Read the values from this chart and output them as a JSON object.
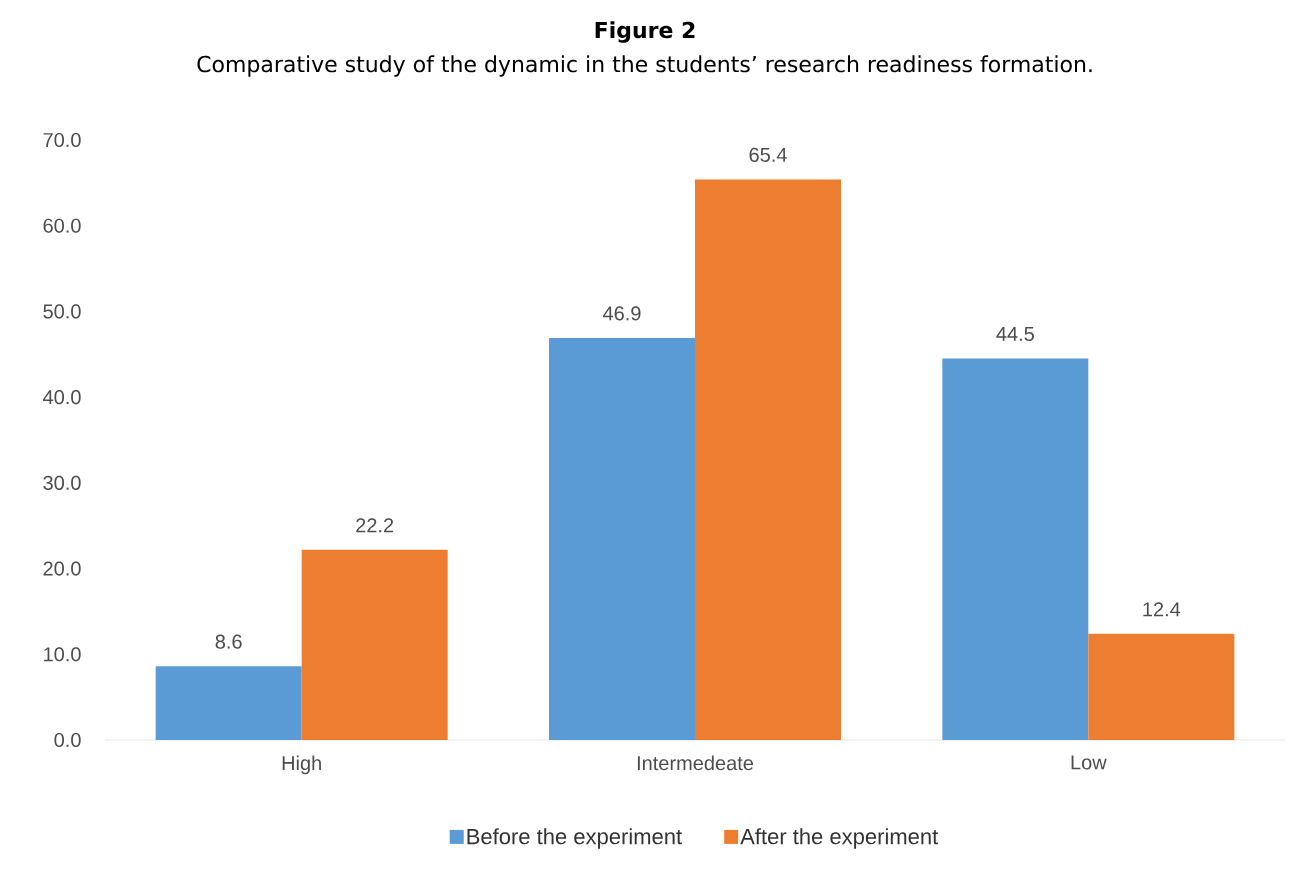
{
  "chart_data": {
    "type": "bar",
    "title": "Figure 2",
    "subtitle": "Comparative study of the dynamic in the students’ research readiness formation.",
    "categories": [
      "High",
      "Intermedeate",
      "Low"
    ],
    "series": [
      {
        "name": "Before the experiment",
        "color": "#5b9bd5",
        "values": [
          8.6,
          46.9,
          44.5
        ]
      },
      {
        "name": "After the experiment",
        "color": "#ed7d31",
        "values": [
          22.2,
          65.4,
          12.4
        ]
      }
    ],
    "ylim": [
      0,
      70
    ],
    "yticks": [
      {
        "value": 0,
        "label": "0.0"
      },
      {
        "value": 10,
        "label": "10.0"
      },
      {
        "value": 20,
        "label": "20.0"
      },
      {
        "value": 30,
        "label": "30.0"
      },
      {
        "value": 40,
        "label": "40.0"
      },
      {
        "value": 50,
        "label": "50.0"
      },
      {
        "value": 60,
        "label": "60.0"
      },
      {
        "value": 70,
        "label": "70.0"
      }
    ],
    "legend": "bottom",
    "data_labels": true
  }
}
